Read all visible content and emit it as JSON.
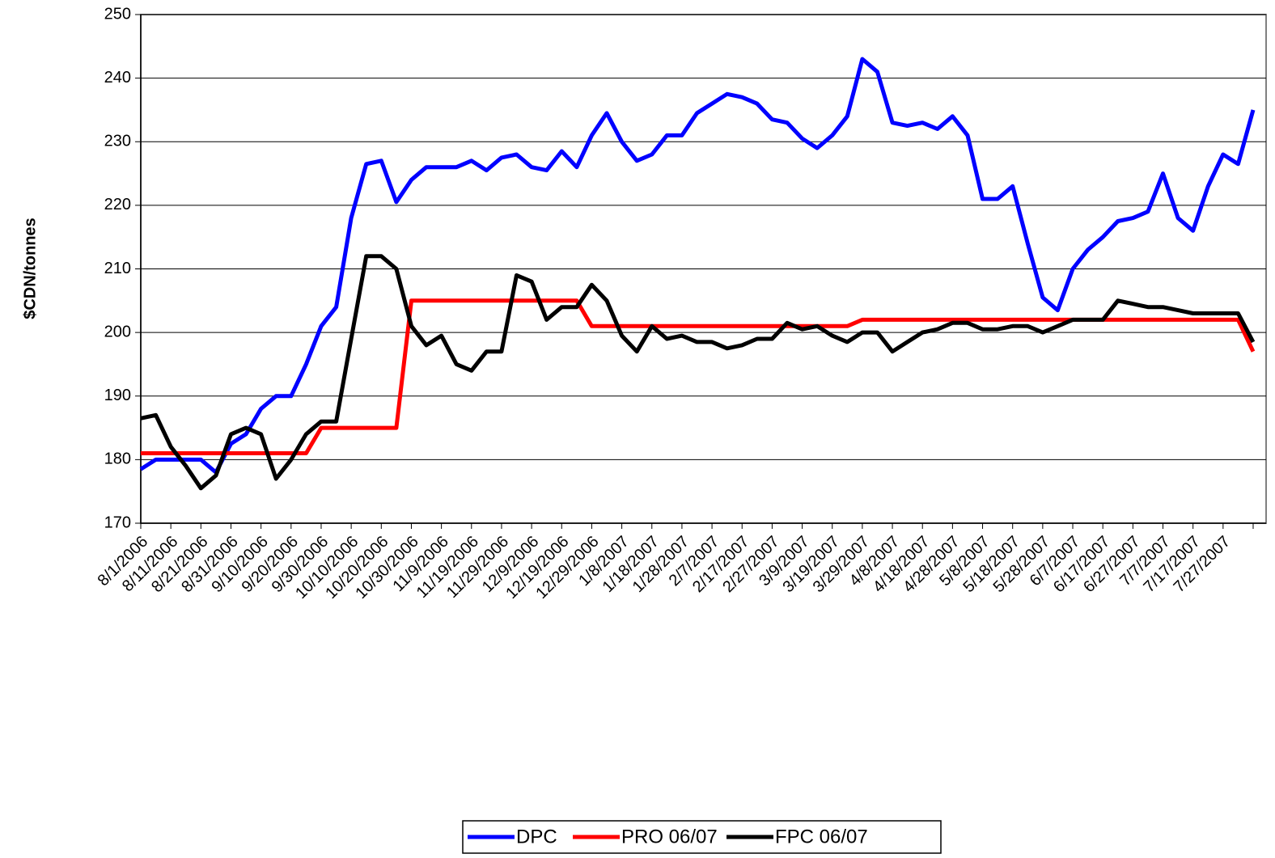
{
  "chart_data": {
    "type": "line",
    "ylabel": "$CDN/tonnes",
    "categories": [
      "8/1/2006",
      null,
      "8/11/2006",
      null,
      "8/21/2006",
      null,
      "8/31/2006",
      null,
      "9/10/2006",
      null,
      "9/20/2006",
      null,
      "9/30/2006",
      null,
      "10/10/2006",
      null,
      "10/20/2006",
      null,
      "10/30/2006",
      null,
      "11/9/2006",
      null,
      "11/19/2006",
      null,
      "11/29/2006",
      null,
      "12/9/2006",
      null,
      "12/19/2006",
      null,
      "12/29/2006",
      null,
      "1/8/2007",
      null,
      "1/18/2007",
      null,
      "1/28/2007",
      null,
      "2/7/2007",
      null,
      "2/17/2007",
      null,
      "2/27/2007",
      null,
      "3/9/2007",
      null,
      "3/19/2007",
      null,
      "3/29/2007",
      null,
      "4/8/2007",
      null,
      "4/18/2007",
      null,
      "4/28/2007",
      null,
      "5/8/2007",
      null,
      "5/18/2007",
      null,
      "5/28/2007",
      null,
      "6/7/2007",
      null,
      "6/17/2007",
      null,
      "6/27/2007",
      null,
      "7/7/2007",
      null,
      "7/17/2007",
      null,
      "7/27/2007",
      null,
      null
    ],
    "series": [
      {
        "name": "DPC",
        "color": "#0000ff",
        "values": [
          178.5,
          180,
          180,
          180,
          180,
          178,
          182.5,
          184,
          188,
          190,
          190,
          195,
          201,
          204,
          218,
          226.5,
          227,
          220.5,
          224,
          226,
          226,
          226,
          227,
          225.5,
          227.5,
          228,
          226,
          225.5,
          228.5,
          226,
          231,
          234.5,
          230,
          227,
          228,
          231,
          231,
          234.5,
          236,
          237.5,
          237,
          236,
          233.5,
          233,
          230.5,
          229,
          231,
          234,
          243,
          241,
          233,
          232.5,
          233,
          232,
          234,
          231,
          221,
          221,
          223,
          214,
          205.5,
          203.5,
          210,
          213,
          215,
          217.5,
          218,
          219,
          225,
          218,
          216,
          223,
          228,
          226.5,
          235
        ]
      },
      {
        "name": "PRO 06/07",
        "color": "#ff0000",
        "values": [
          181,
          181,
          181,
          181,
          181,
          181,
          181,
          181,
          181,
          181,
          181,
          181,
          185,
          185,
          185,
          185,
          185,
          185,
          205,
          205,
          205,
          205,
          205,
          205,
          205,
          205,
          205,
          205,
          205,
          205,
          201,
          201,
          201,
          201,
          201,
          201,
          201,
          201,
          201,
          201,
          201,
          201,
          201,
          201,
          201,
          201,
          201,
          201,
          202,
          202,
          202,
          202,
          202,
          202,
          202,
          202,
          202,
          202,
          202,
          202,
          202,
          202,
          202,
          202,
          202,
          202,
          202,
          202,
          202,
          202,
          202,
          202,
          202,
          202,
          197
        ]
      },
      {
        "name": "FPC 06/07",
        "color": "#000000",
        "values": [
          186.5,
          187,
          182,
          179,
          175.5,
          177.5,
          184,
          185,
          184,
          177,
          180,
          184,
          186,
          186,
          199,
          212,
          212,
          210,
          201,
          198,
          199.5,
          195,
          194,
          197,
          197,
          209,
          208,
          202,
          204,
          204,
          207.5,
          205,
          199.5,
          197,
          201,
          199,
          199.5,
          198.5,
          198.5,
          197.5,
          198,
          199,
          199,
          201.5,
          200.5,
          201,
          199.5,
          198.5,
          200,
          200,
          197,
          198.5,
          200,
          200.5,
          201.5,
          201.5,
          200.5,
          200.5,
          201,
          201,
          200,
          201,
          202,
          202,
          202,
          205,
          204.5,
          204,
          204,
          203.5,
          203,
          203,
          203,
          203,
          198.5
        ]
      }
    ],
    "ylim": [
      170,
      250
    ],
    "yticks": [
      170,
      180,
      190,
      200,
      210,
      220,
      230,
      240,
      250
    ],
    "grid": true,
    "legend": "bottom"
  }
}
